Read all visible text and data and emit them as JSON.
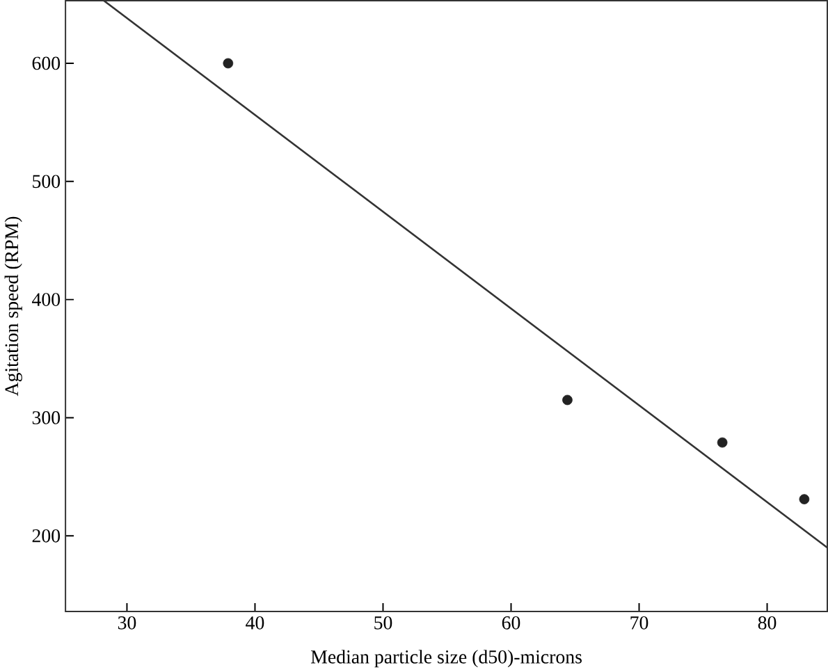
{
  "chart_data": {
    "type": "scatter",
    "xlabel": "Median particle size (d50)-microns",
    "ylabel": "Agitation speed (RPM)",
    "xlim": [
      25.2,
      84.7
    ],
    "ylim": [
      136,
      653
    ],
    "xticks": [
      30,
      40,
      50,
      60,
      70,
      80
    ],
    "yticks": [
      200,
      300,
      400,
      500,
      600
    ],
    "grid": false,
    "series": [
      {
        "color": "#222222",
        "marker": "circle",
        "x": [
          37.9,
          64.4,
          76.5,
          82.9
        ],
        "values": [
          600,
          315,
          279,
          231
        ]
      },
      {
        "type": "line",
        "color": "#333333",
        "marker": "none",
        "x": [
          28.2,
          84.7
        ],
        "values": [
          653,
          190
        ]
      }
    ]
  }
}
